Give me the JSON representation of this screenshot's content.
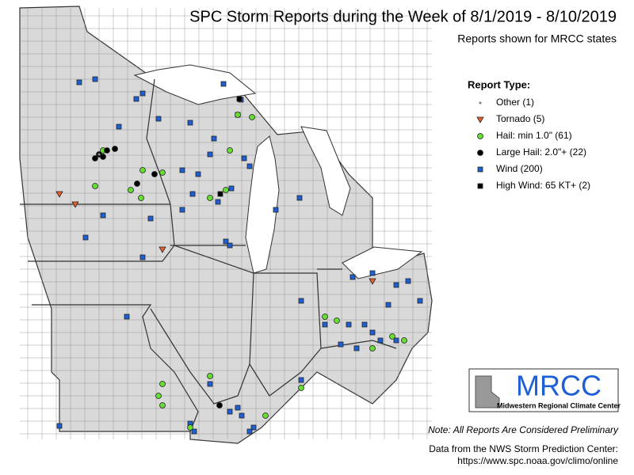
{
  "header": {
    "title": "SPC Storm Reports during the Week of 8/1/2019 - 8/10/2019",
    "subtitle": "Reports shown for MRCC states"
  },
  "legend": {
    "title": "Report Type:",
    "items": [
      {
        "label": "Other (1)",
        "symbol": "dot",
        "color": "#888888"
      },
      {
        "label": "Tornado (5)",
        "symbol": "triangle",
        "color": "#e8602c"
      },
      {
        "label": "Hail: min 1.0\" (61)",
        "symbol": "circle",
        "color": "#66dd33"
      },
      {
        "label": "Large Hail: 2.0\"+ (22)",
        "symbol": "circle",
        "color": "#000000"
      },
      {
        "label": "Wind (200)",
        "symbol": "square",
        "color": "#1f5fd6"
      },
      {
        "label": "High Wind: 65 KT+ (2)",
        "symbol": "square",
        "color": "#000000"
      }
    ]
  },
  "logo": {
    "text": "MRCC",
    "caption": "Midwestern Regional Climate Center"
  },
  "note": "Note: All Reports Are Considered Preliminary",
  "source": [
    "Data from the NWS Storm Prediction Center:",
    "https://www.spc.noaa.gov/climo/online"
  ]
}
